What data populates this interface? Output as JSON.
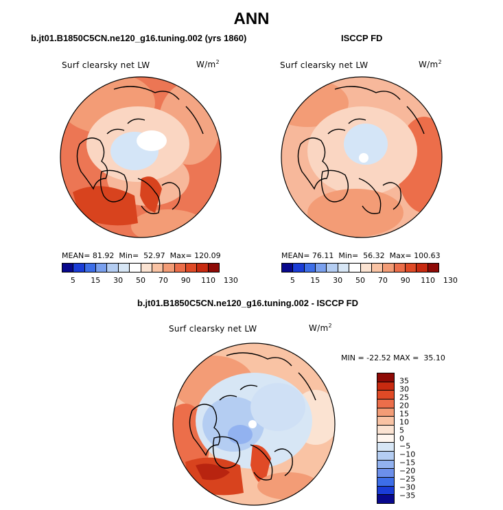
{
  "figure": {
    "title": "ANN"
  },
  "panels": {
    "model": {
      "title": "b.jt01.B1850C5CN.ne120_g16.tuning.002 (yrs 1860)",
      "variable": "Surf clearsky net LW",
      "units": "W/m",
      "units_exp": "2",
      "mean_label": "MEAN=",
      "mean": "81.92",
      "min_label": "Min=",
      "min": "52.97",
      "max_label": "Max=",
      "max": "120.09"
    },
    "obs": {
      "title": "ISCCP FD",
      "variable": "Surf clearsky net LW",
      "units": "W/m",
      "units_exp": "2",
      "mean_label": "MEAN=",
      "mean": "76.11",
      "min_label": "Min=",
      "min": "56.32",
      "max_label": "Max=",
      "max": "100.63"
    },
    "diff": {
      "title": "b.jt01.B1850C5CN.ne120_g16.tuning.002 - ISCCP FD",
      "variable": "Surf clearsky net LW",
      "units": "W/m",
      "units_exp": "2",
      "minmax_text": "MIN = -22.52 MAX =  35.10"
    }
  },
  "colorbars": {
    "abs": {
      "tick_labels": [
        "5",
        "15",
        "30",
        "50",
        "70",
        "90",
        "110",
        "130"
      ],
      "colors": [
        "#08088c",
        "#1a3cd6",
        "#3d6ee8",
        "#7aa0ee",
        "#b4cdf2",
        "#d7e6f5",
        "#ffffff",
        "#fbe3d2",
        "#f9c3a4",
        "#f39c76",
        "#ec6e4a",
        "#e04a26",
        "#c82a10",
        "#8e0a06"
      ]
    },
    "diff": {
      "tick_labels": [
        "35",
        "30",
        "25",
        "20",
        "15",
        "10",
        "5",
        "0",
        "−5",
        "−10",
        "−15",
        "−20",
        "−25",
        "−30",
        "−35"
      ],
      "colors": [
        "#8e0a06",
        "#c82a10",
        "#e04a26",
        "#ec6e4a",
        "#f39c76",
        "#f9c3a4",
        "#fbe3d2",
        "#fff6ef",
        "#d7e6f5",
        "#b4cdf2",
        "#92b2f0",
        "#6c8fea",
        "#3d6ee8",
        "#1a3cd6",
        "#08088c"
      ]
    }
  }
}
